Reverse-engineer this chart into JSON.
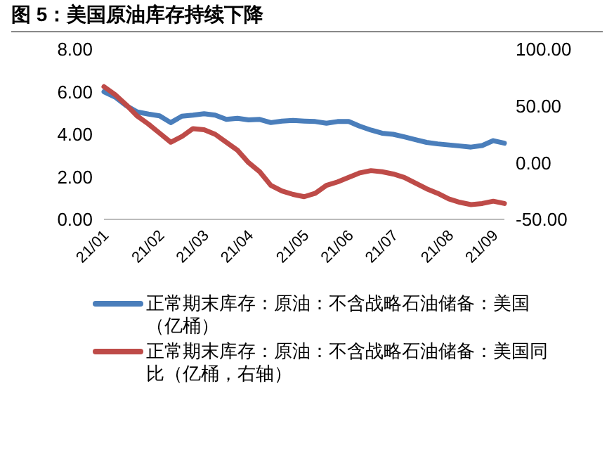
{
  "chart_data": {
    "type": "line",
    "title": "图 5：美国原油库存持续下降",
    "categories": [
      "21/01",
      null,
      null,
      null,
      null,
      "21/02",
      null,
      null,
      null,
      "21/03",
      null,
      null,
      null,
      "21/04",
      null,
      null,
      null,
      null,
      "21/05",
      null,
      null,
      null,
      "21/06",
      null,
      null,
      null,
      "21/07",
      null,
      null,
      null,
      null,
      "21/08",
      null,
      null,
      null,
      "21/09",
      null
    ],
    "series": [
      {
        "name": "正常期末库存：原油：不含战略石油储备：美国（亿桶）",
        "color": "#4a7ebb",
        "values": [
          6.0,
          5.75,
          5.35,
          5.05,
          4.95,
          4.87,
          4.55,
          4.85,
          4.9,
          4.97,
          4.9,
          4.7,
          4.75,
          4.68,
          4.7,
          4.55,
          4.62,
          4.65,
          4.62,
          4.6,
          4.52,
          4.6,
          4.6,
          4.38,
          4.2,
          4.05,
          4.0,
          3.88,
          3.75,
          3.62,
          3.55,
          3.5,
          3.45,
          3.4,
          3.47,
          3.7,
          3.58
        ]
      },
      {
        "name": "正常期末库存：原油：不含战略石油储备：美国同比（亿桶，右轴）",
        "color": "#be4b48",
        "axis": "y2",
        "values": [
          67,
          60,
          51,
          41,
          34,
          26,
          18,
          23,
          30,
          29,
          25,
          18,
          11,
          0,
          -8,
          -20,
          -25,
          -28,
          -30,
          -27,
          -20,
          -17,
          -13,
          -9,
          -7,
          -8,
          -10,
          -13,
          -18,
          -23,
          -27,
          -32,
          -35,
          -37,
          -36,
          -34,
          -36
        ]
      }
    ],
    "ylim": [
      0,
      8
    ],
    "yticks": [
      {
        "value": 0,
        "label": "0.00"
      },
      {
        "value": 2,
        "label": "2.00"
      },
      {
        "value": 4,
        "label": "4.00"
      },
      {
        "value": 6,
        "label": "6.00"
      },
      {
        "value": 8,
        "label": "8.00"
      }
    ],
    "y2lim": [
      -50,
      100
    ],
    "y2ticks": [
      {
        "value": -50,
        "label": "-50.00"
      },
      {
        "value": 0,
        "label": "0.00"
      },
      {
        "value": 50,
        "label": "50.00"
      },
      {
        "value": 100,
        "label": "100.00"
      }
    ],
    "legend": "bottom",
    "grid": false,
    "marker": "none",
    "line_style": "solid"
  }
}
